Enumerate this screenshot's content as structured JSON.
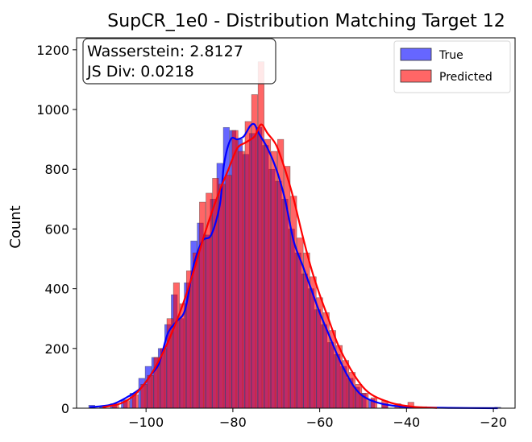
{
  "chart_data": {
    "type": "histogram",
    "title": "SupCR_1e0 - Distribution Matching Target 12",
    "xlabel": "",
    "ylabel": "Count",
    "xlim": [
      -116,
      -15
    ],
    "ylim": [
      0,
      1240
    ],
    "x_ticks": [
      -100,
      -80,
      -60,
      -40,
      -20
    ],
    "y_ticks": [
      0,
      200,
      400,
      600,
      800,
      1000,
      1200
    ],
    "grid": false,
    "legend_position": "top-right",
    "stats_box": {
      "wasserstein": "Wasserstein: 2.8127",
      "js": "JS Div: 0.0218"
    },
    "series": [
      {
        "name": "True",
        "color": "#0000ff",
        "kde_color": "#0000ff",
        "bins": [
          {
            "x": -112.5,
            "y": 10
          },
          {
            "x": -110,
            "y": 3
          },
          {
            "x": -107.5,
            "y": 15
          },
          {
            "x": -105,
            "y": 28
          },
          {
            "x": -103,
            "y": 50
          },
          {
            "x": -101,
            "y": 100
          },
          {
            "x": -99.5,
            "y": 140
          },
          {
            "x": -98,
            "y": 170
          },
          {
            "x": -96.5,
            "y": 200
          },
          {
            "x": -95,
            "y": 280
          },
          {
            "x": -93.5,
            "y": 380
          },
          {
            "x": -92,
            "y": 300
          },
          {
            "x": -90.5,
            "y": 420
          },
          {
            "x": -89,
            "y": 560
          },
          {
            "x": -87.5,
            "y": 620
          },
          {
            "x": -86,
            "y": 580
          },
          {
            "x": -84.5,
            "y": 700
          },
          {
            "x": -83,
            "y": 820
          },
          {
            "x": -81.5,
            "y": 940
          },
          {
            "x": -80,
            "y": 930
          },
          {
            "x": -78.5,
            "y": 900
          },
          {
            "x": -77,
            "y": 850
          },
          {
            "x": -75.5,
            "y": 920
          },
          {
            "x": -74,
            "y": 940
          },
          {
            "x": -72.5,
            "y": 880
          },
          {
            "x": -71,
            "y": 800
          },
          {
            "x": -69.5,
            "y": 760
          },
          {
            "x": -68,
            "y": 700
          },
          {
            "x": -66.5,
            "y": 600
          },
          {
            "x": -65,
            "y": 520
          },
          {
            "x": -63.5,
            "y": 450
          },
          {
            "x": -62,
            "y": 400
          },
          {
            "x": -60.5,
            "y": 330
          },
          {
            "x": -59,
            "y": 280
          },
          {
            "x": -57.5,
            "y": 220
          },
          {
            "x": -56,
            "y": 180
          },
          {
            "x": -54.5,
            "y": 140
          },
          {
            "x": -53,
            "y": 100
          },
          {
            "x": -51.5,
            "y": 70
          },
          {
            "x": -50,
            "y": 50
          },
          {
            "x": -48,
            "y": 30
          },
          {
            "x": -45,
            "y": 15
          },
          {
            "x": -41,
            "y": 8
          },
          {
            "x": -36,
            "y": 4
          },
          {
            "x": -28,
            "y": 2
          },
          {
            "x": -19,
            "y": 3
          }
        ],
        "kde": [
          {
            "x": -113,
            "y": 3
          },
          {
            "x": -108,
            "y": 12
          },
          {
            "x": -104,
            "y": 40
          },
          {
            "x": -101,
            "y": 70
          },
          {
            "x": -99,
            "y": 110
          },
          {
            "x": -97,
            "y": 150
          },
          {
            "x": -95,
            "y": 250
          },
          {
            "x": -93,
            "y": 290
          },
          {
            "x": -91,
            "y": 330
          },
          {
            "x": -89,
            "y": 480
          },
          {
            "x": -87,
            "y": 560
          },
          {
            "x": -85,
            "y": 580
          },
          {
            "x": -83,
            "y": 680
          },
          {
            "x": -82,
            "y": 820
          },
          {
            "x": -80.5,
            "y": 900
          },
          {
            "x": -79,
            "y": 900
          },
          {
            "x": -77.5,
            "y": 910
          },
          {
            "x": -76,
            "y": 945
          },
          {
            "x": -75,
            "y": 950
          },
          {
            "x": -74,
            "y": 920
          },
          {
            "x": -72,
            "y": 870
          },
          {
            "x": -70,
            "y": 800
          },
          {
            "x": -68,
            "y": 700
          },
          {
            "x": -66,
            "y": 560
          },
          {
            "x": -64,
            "y": 480
          },
          {
            "x": -62,
            "y": 400
          },
          {
            "x": -60,
            "y": 320
          },
          {
            "x": -58,
            "y": 250
          },
          {
            "x": -56,
            "y": 180
          },
          {
            "x": -54,
            "y": 120
          },
          {
            "x": -52,
            "y": 70
          },
          {
            "x": -50,
            "y": 40
          },
          {
            "x": -47,
            "y": 20
          },
          {
            "x": -43,
            "y": 8
          },
          {
            "x": -38,
            "y": 3
          },
          {
            "x": -30,
            "y": 1
          },
          {
            "x": -19,
            "y": 0
          }
        ]
      },
      {
        "name": "Predicted",
        "color": "#ff0000",
        "kde_color": "#ff0000",
        "bins": [
          {
            "x": -107,
            "y": 10
          },
          {
            "x": -104.5,
            "y": 25
          },
          {
            "x": -102.5,
            "y": 45
          },
          {
            "x": -100.5,
            "y": 80
          },
          {
            "x": -99,
            "y": 110
          },
          {
            "x": -97.5,
            "y": 170
          },
          {
            "x": -96,
            "y": 200
          },
          {
            "x": -94.5,
            "y": 300
          },
          {
            "x": -93,
            "y": 420
          },
          {
            "x": -91.5,
            "y": 350
          },
          {
            "x": -90,
            "y": 460
          },
          {
            "x": -88.5,
            "y": 520
          },
          {
            "x": -87,
            "y": 690
          },
          {
            "x": -85.5,
            "y": 720
          },
          {
            "x": -84,
            "y": 770
          },
          {
            "x": -82.5,
            "y": 750
          },
          {
            "x": -81,
            "y": 780
          },
          {
            "x": -79.5,
            "y": 930
          },
          {
            "x": -78,
            "y": 860
          },
          {
            "x": -76.5,
            "y": 960
          },
          {
            "x": -75,
            "y": 1050
          },
          {
            "x": -73.5,
            "y": 1160
          },
          {
            "x": -72,
            "y": 900
          },
          {
            "x": -70.5,
            "y": 860
          },
          {
            "x": -69,
            "y": 900
          },
          {
            "x": -67.5,
            "y": 810
          },
          {
            "x": -66,
            "y": 710
          },
          {
            "x": -64.5,
            "y": 570
          },
          {
            "x": -63,
            "y": 520
          },
          {
            "x": -61.5,
            "y": 440
          },
          {
            "x": -60,
            "y": 370
          },
          {
            "x": -58.5,
            "y": 320
          },
          {
            "x": -57,
            "y": 260
          },
          {
            "x": -55.5,
            "y": 210
          },
          {
            "x": -54,
            "y": 160
          },
          {
            "x": -52.5,
            "y": 120
          },
          {
            "x": -51,
            "y": 80
          },
          {
            "x": -49.5,
            "y": 50
          },
          {
            "x": -47.5,
            "y": 35
          },
          {
            "x": -45,
            "y": 25
          },
          {
            "x": -42,
            "y": 15
          },
          {
            "x": -39,
            "y": 20
          },
          {
            "x": -36,
            "y": 5
          },
          {
            "x": -33,
            "y": 3
          }
        ],
        "kde": [
          {
            "x": -110,
            "y": 3
          },
          {
            "x": -106,
            "y": 15
          },
          {
            "x": -103,
            "y": 40
          },
          {
            "x": -101,
            "y": 70
          },
          {
            "x": -99,
            "y": 110
          },
          {
            "x": -97,
            "y": 160
          },
          {
            "x": -95,
            "y": 220
          },
          {
            "x": -93,
            "y": 290
          },
          {
            "x": -91,
            "y": 370
          },
          {
            "x": -89,
            "y": 460
          },
          {
            "x": -87,
            "y": 560
          },
          {
            "x": -85,
            "y": 650
          },
          {
            "x": -83,
            "y": 730
          },
          {
            "x": -81,
            "y": 800
          },
          {
            "x": -79,
            "y": 870
          },
          {
            "x": -77,
            "y": 890
          },
          {
            "x": -75,
            "y": 910
          },
          {
            "x": -73.5,
            "y": 950
          },
          {
            "x": -72,
            "y": 920
          },
          {
            "x": -70,
            "y": 880
          },
          {
            "x": -68,
            "y": 800
          },
          {
            "x": -66,
            "y": 700
          },
          {
            "x": -64,
            "y": 580
          },
          {
            "x": -62,
            "y": 470
          },
          {
            "x": -60,
            "y": 380
          },
          {
            "x": -58,
            "y": 300
          },
          {
            "x": -56,
            "y": 220
          },
          {
            "x": -54,
            "y": 160
          },
          {
            "x": -52,
            "y": 110
          },
          {
            "x": -50,
            "y": 70
          },
          {
            "x": -48,
            "y": 45
          },
          {
            "x": -45,
            "y": 25
          },
          {
            "x": -42,
            "y": 12
          },
          {
            "x": -38,
            "y": 4
          },
          {
            "x": -33,
            "y": 1
          }
        ]
      }
    ]
  }
}
